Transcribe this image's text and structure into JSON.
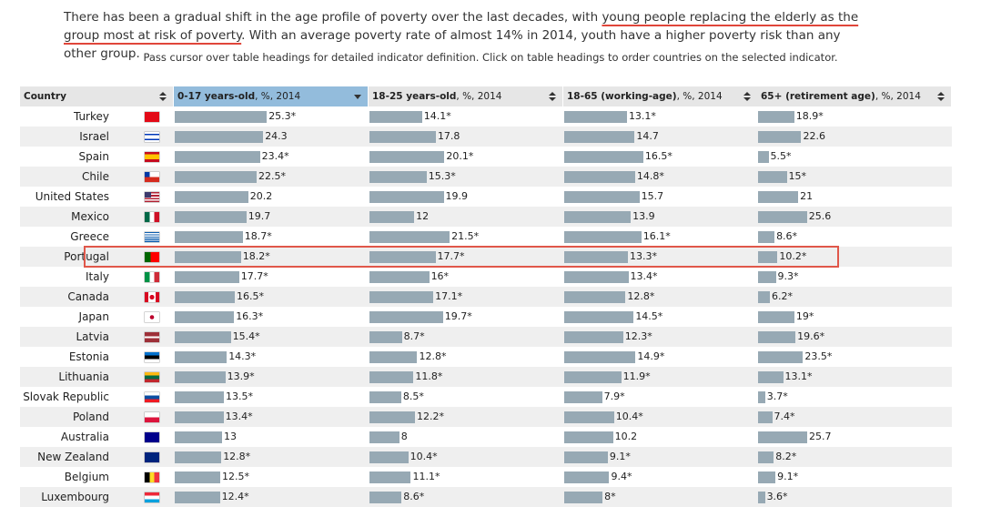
{
  "intro": {
    "text_before": "There has been a gradual shift in the age profile of poverty over the last decades, with ",
    "highlight": "young people replacing the elderly as the group most at risk of poverty",
    "text_after": ". With an average poverty rate of almost 14% in 2014, youth have a higher poverty risk than any other group."
  },
  "instruction": "Pass cursor over table headings for detailed indicator definition. Click on table headings to order countries on the selected indicator.",
  "table": {
    "country_header": "Country",
    "sorted_column": 0,
    "highlighted_row": 7,
    "bar_color": "#97a9b4",
    "columns": [
      {
        "label": "0-17 years-old",
        "unit": ", %, 2014",
        "xlim": [
          0,
          25
        ]
      },
      {
        "label": "18-25 years-old",
        "unit": ", %, 2014",
        "xlim": [
          0,
          24.4
        ]
      },
      {
        "label": "18-65 (working-age)",
        "unit": ", %, 2014",
        "xlim": [
          0,
          19
        ]
      },
      {
        "label": "65+ (retirement age)",
        "unit": ", %, 2014",
        "xlim": [
          0,
          47.6
        ]
      }
    ],
    "rows": [
      {
        "country": "Turkey",
        "values": [
          25.3,
          14.1,
          13.1,
          18.9
        ],
        "value_labels": [
          "25.3*",
          "14.1*",
          "13.1*",
          "18.9*"
        ]
      },
      {
        "country": "Israel",
        "values": [
          24.3,
          17.8,
          14.7,
          22.6
        ],
        "value_labels": [
          "24.3",
          "17.8",
          "14.7",
          "22.6"
        ]
      },
      {
        "country": "Spain",
        "values": [
          23.4,
          20.1,
          16.5,
          5.5
        ],
        "value_labels": [
          "23.4*",
          "20.1*",
          "16.5*",
          "5.5*"
        ]
      },
      {
        "country": "Chile",
        "values": [
          22.5,
          15.3,
          14.8,
          15
        ],
        "value_labels": [
          "22.5*",
          "15.3*",
          "14.8*",
          "15*"
        ]
      },
      {
        "country": "United States",
        "values": [
          20.2,
          19.9,
          15.7,
          21
        ],
        "value_labels": [
          "20.2",
          "19.9",
          "15.7",
          "21"
        ]
      },
      {
        "country": "Mexico",
        "values": [
          19.7,
          12,
          13.9,
          25.6
        ],
        "value_labels": [
          "19.7",
          "12",
          "13.9",
          "25.6"
        ]
      },
      {
        "country": "Greece",
        "values": [
          18.7,
          21.5,
          16.1,
          8.6
        ],
        "value_labels": [
          "18.7*",
          "21.5*",
          "16.1*",
          "8.6*"
        ]
      },
      {
        "country": "Portugal",
        "values": [
          18.2,
          17.7,
          13.3,
          10.2
        ],
        "value_labels": [
          "18.2*",
          "17.7*",
          "13.3*",
          "10.2*"
        ]
      },
      {
        "country": "Italy",
        "values": [
          17.7,
          16,
          13.4,
          9.3
        ],
        "value_labels": [
          "17.7*",
          "16*",
          "13.4*",
          "9.3*"
        ]
      },
      {
        "country": "Canada",
        "values": [
          16.5,
          17.1,
          12.8,
          6.2
        ],
        "value_labels": [
          "16.5*",
          "17.1*",
          "12.8*",
          "6.2*"
        ]
      },
      {
        "country": "Japan",
        "values": [
          16.3,
          19.7,
          14.5,
          19
        ],
        "value_labels": [
          "16.3*",
          "19.7*",
          "14.5*",
          "19*"
        ]
      },
      {
        "country": "Latvia",
        "values": [
          15.4,
          8.7,
          12.3,
          19.6
        ],
        "value_labels": [
          "15.4*",
          "8.7*",
          "12.3*",
          "19.6*"
        ]
      },
      {
        "country": "Estonia",
        "values": [
          14.3,
          12.8,
          14.9,
          23.5
        ],
        "value_labels": [
          "14.3*",
          "12.8*",
          "14.9*",
          "23.5*"
        ]
      },
      {
        "country": "Lithuania",
        "values": [
          13.9,
          11.8,
          11.9,
          13.1
        ],
        "value_labels": [
          "13.9*",
          "11.8*",
          "11.9*",
          "13.1*"
        ]
      },
      {
        "country": "Slovak Republic",
        "values": [
          13.5,
          8.5,
          7.9,
          3.7
        ],
        "value_labels": [
          "13.5*",
          "8.5*",
          "7.9*",
          "3.7*"
        ]
      },
      {
        "country": "Poland",
        "values": [
          13.4,
          12.2,
          10.4,
          7.4
        ],
        "value_labels": [
          "13.4*",
          "12.2*",
          "10.4*",
          "7.4*"
        ]
      },
      {
        "country": "Australia",
        "values": [
          13,
          8,
          10.2,
          25.7
        ],
        "value_labels": [
          "13",
          "8",
          "10.2",
          "25.7"
        ]
      },
      {
        "country": "New Zealand",
        "values": [
          12.8,
          10.4,
          9.1,
          8.2
        ],
        "value_labels": [
          "12.8*",
          "10.4*",
          "9.1*",
          "8.2*"
        ]
      },
      {
        "country": "Belgium",
        "values": [
          12.5,
          11.1,
          9.4,
          9.1
        ],
        "value_labels": [
          "12.5*",
          "11.1*",
          "9.4*",
          "9.1*"
        ]
      },
      {
        "country": "Luxembourg",
        "values": [
          12.4,
          8.6,
          8,
          3.6
        ],
        "value_labels": [
          "12.4*",
          "8.6*",
          "8*",
          "3.6*"
        ]
      }
    ]
  }
}
